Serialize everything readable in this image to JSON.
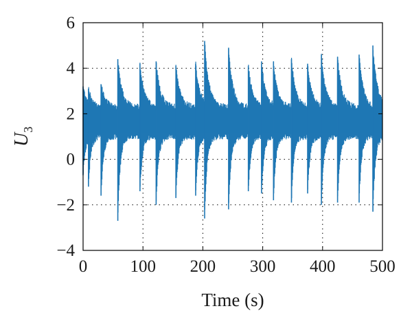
{
  "chart_data": {
    "type": "line",
    "title": "",
    "xlabel": "Time (s)",
    "ylabel": {
      "main": "U",
      "subscript": "3"
    },
    "xlim": [
      0,
      500
    ],
    "ylim": [
      -4,
      6
    ],
    "xticks": [
      0,
      100,
      200,
      300,
      400,
      500
    ],
    "yticks": [
      -4,
      -2,
      0,
      2,
      4,
      6
    ],
    "xtick_labels": [
      "0",
      "100",
      "200",
      "300",
      "400",
      "500"
    ],
    "ytick_labels": [
      "−4",
      "−2",
      "0",
      "2",
      "4",
      "6"
    ],
    "grid": "dotted",
    "series": [
      {
        "color": "#1f77b4",
        "baseline": 1.7,
        "band": [
          1.0,
          2.3
        ],
        "spike_times": [
          0,
          9,
          30,
          58,
          95,
          122,
          155,
          188,
          203,
          243,
          276,
          298,
          318,
          348,
          375,
          398,
          425,
          461,
          484
        ],
        "spike_peaks": [
          3.2,
          3.1,
          3.3,
          4.4,
          4.2,
          4.3,
          4.1,
          4.2,
          5.2,
          4.9,
          4.1,
          4.3,
          4.3,
          4.4,
          4.2,
          4.6,
          4.5,
          4.6,
          5.0
        ],
        "spike_troughs": [
          -0.7,
          -1.2,
          -1.6,
          -2.7,
          -1.4,
          -2.0,
          -1.7,
          -1.6,
          -2.6,
          -2.2,
          -1.4,
          -1.5,
          -1.8,
          -1.9,
          -1.5,
          -2.0,
          -1.9,
          -1.9,
          -2.3
        ]
      }
    ]
  }
}
